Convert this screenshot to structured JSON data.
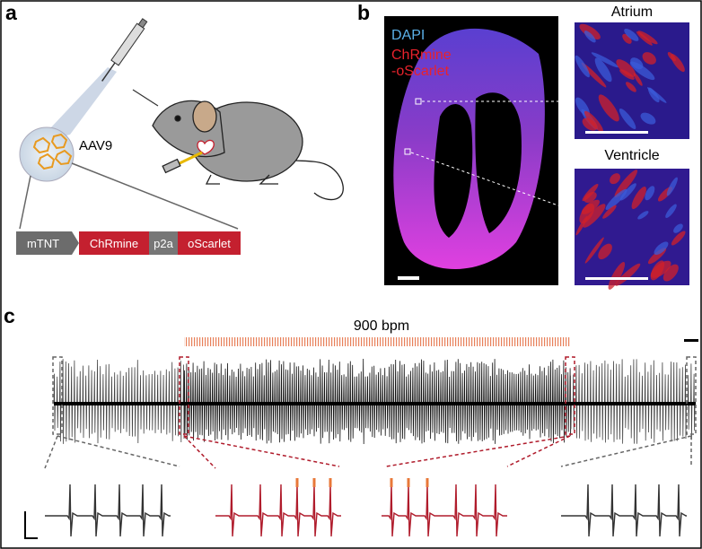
{
  "panel_a": {
    "label": "a",
    "vector": "AAV9",
    "construct": [
      "mTNT",
      "ChRmine",
      "p2a",
      "oScarlet"
    ]
  },
  "panel_b": {
    "label": "b",
    "stains": [
      "DAPI",
      "ChRmine",
      "-oScarlet"
    ],
    "insets": [
      "Atrium",
      "Ventricle"
    ]
  },
  "panel_c": {
    "label": "c",
    "stimulation": "900 bpm"
  }
}
